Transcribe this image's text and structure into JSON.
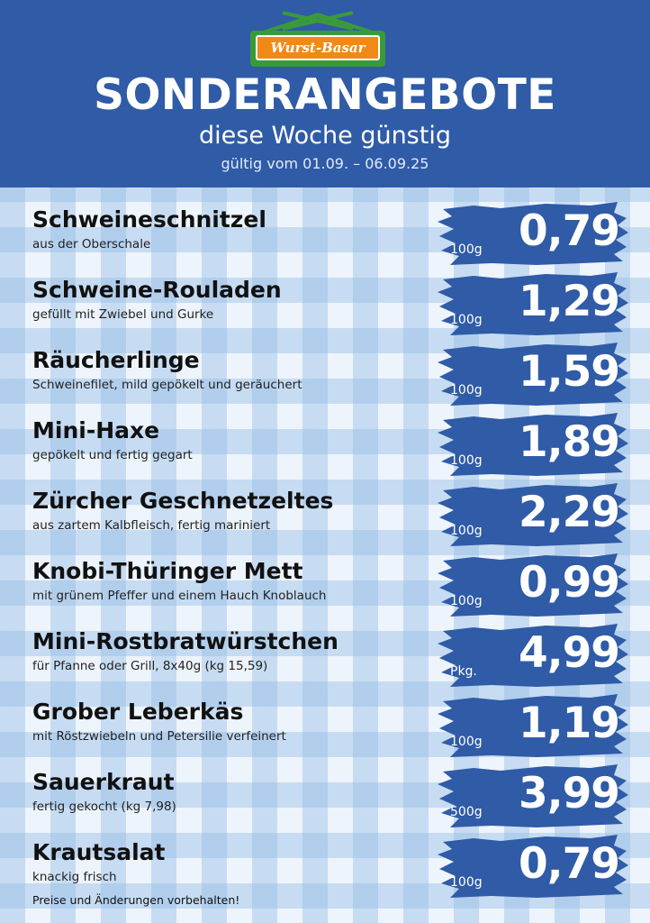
{
  "logo": {
    "text": "Wurst-Basar"
  },
  "header": {
    "title": "SONDERANGEBOTE",
    "subtitle": "diese Woche günstig",
    "validity": "gültig vom 01.09. – 06.09.25"
  },
  "colors": {
    "header_bg": "#2f5ba7",
    "brush": "#2f5ba7",
    "logo_green": "#3a9a3a",
    "logo_orange": "#f08a17"
  },
  "items": [
    {
      "name": "Schweineschnitzel",
      "desc": "aus der Oberschale",
      "unit": "100g",
      "price": "0,79"
    },
    {
      "name": "Schweine-Rouladen",
      "desc": "gefüllt mit Zwiebel und Gurke",
      "unit": "100g",
      "price": "1,29"
    },
    {
      "name": "Räucherlinge",
      "desc": "Schweinefilet, mild gepökelt und geräuchert",
      "unit": "100g",
      "price": "1,59"
    },
    {
      "name": "Mini-Haxe",
      "desc": "gepökelt und fertig gegart",
      "unit": "100g",
      "price": "1,89"
    },
    {
      "name": "Zürcher Geschnetzeltes",
      "desc": "aus zartem Kalbfleisch, fertig mariniert",
      "unit": "100g",
      "price": "2,29"
    },
    {
      "name": "Knobi-Thüringer Mett",
      "desc": "mit grünem Pfeffer und einem Hauch Knoblauch",
      "unit": "100g",
      "price": "0,99"
    },
    {
      "name": "Mini-Rostbratwürstchen",
      "desc": "für Pfanne oder Grill, 8x40g (kg 15,59)",
      "unit": "Pkg.",
      "price": "4,99"
    },
    {
      "name": "Grober Leberkäs",
      "desc": "mit Röstzwiebeln und Petersilie verfeinert",
      "unit": "100g",
      "price": "1,19"
    },
    {
      "name": "Sauerkraut",
      "desc": "fertig gekocht (kg 7,98)",
      "unit": "500g",
      "price": "3,99"
    },
    {
      "name": "Krautsalat",
      "desc": "knackig frisch",
      "unit": "100g",
      "price": "0,79"
    }
  ],
  "footer": {
    "note": "Preise und Änderungen vorbehalten!"
  }
}
